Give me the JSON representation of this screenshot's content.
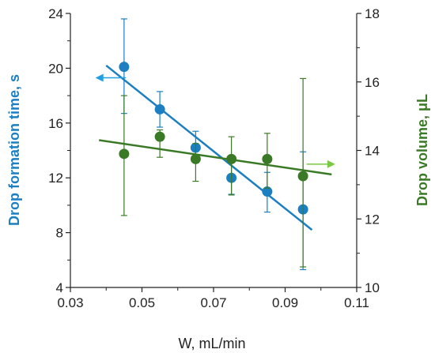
{
  "chart_data": {
    "type": "scatter",
    "title": "",
    "xlabel": "W, mL/min",
    "ylabel_left": "Drop formation time, s",
    "ylabel_right": "Drop volume, μL",
    "xlim": [
      0.03,
      0.11
    ],
    "ylim_left": [
      4,
      24
    ],
    "ylim_right": [
      10,
      18
    ],
    "x_ticks": [
      0.03,
      0.05,
      0.07,
      0.09,
      0.11
    ],
    "x_tick_labels": [
      "0.03",
      "0.05",
      "0.07",
      "0.09",
      "0.11"
    ],
    "y_left_ticks": [
      4,
      8,
      12,
      16,
      20,
      24
    ],
    "y_left_tick_labels": [
      "4",
      "8",
      "12",
      "16",
      "20",
      "24"
    ],
    "y_right_ticks": [
      10,
      12,
      14,
      16,
      18
    ],
    "y_right_tick_labels": [
      "10",
      "12",
      "14",
      "16",
      "18"
    ],
    "grid": false,
    "series": [
      {
        "axis": "left",
        "color": "#1b7fc1",
        "x": [
          0.045,
          0.055,
          0.065,
          0.075,
          0.085,
          0.095
        ],
        "y": [
          20.1,
          17.0,
          14.2,
          12.0,
          11.0,
          9.7
        ],
        "err_low": [
          16.7,
          15.7,
          13.2,
          10.8,
          9.5,
          5.3
        ],
        "err_high": [
          23.6,
          18.3,
          15.4,
          13.2,
          12.4,
          13.9
        ],
        "trend": {
          "x": [
            0.04,
            0.0975
          ],
          "y": [
            20.2,
            8.2
          ]
        },
        "arrow": {
          "from": [
            0.0455,
            19.3
          ],
          "to": [
            0.037,
            19.3
          ]
        }
      },
      {
        "axis": "right",
        "color": "#3a7a26",
        "x": [
          0.045,
          0.055,
          0.065,
          0.075,
          0.085,
          0.095
        ],
        "y": [
          13.9,
          14.4,
          13.75,
          13.75,
          13.75,
          13.25
        ],
        "err_low": [
          12.1,
          13.8,
          13.1,
          12.7,
          12.9,
          10.6
        ],
        "err_high": [
          15.6,
          14.6,
          14.2,
          14.4,
          14.5,
          16.1
        ],
        "trend": {
          "x": [
            0.038,
            0.103
          ],
          "y": [
            14.3,
            13.3
          ]
        },
        "arrow": {
          "from": [
            0.096,
            13.6
          ],
          "to": [
            0.104,
            13.6
          ]
        }
      }
    ]
  },
  "colors": {
    "left_axis_title": "#1b7fc1",
    "right_axis_title": "#3a7a26",
    "axis_line": "#222222",
    "left_arrow": "#1fa0e6",
    "right_arrow": "#7ac943"
  }
}
